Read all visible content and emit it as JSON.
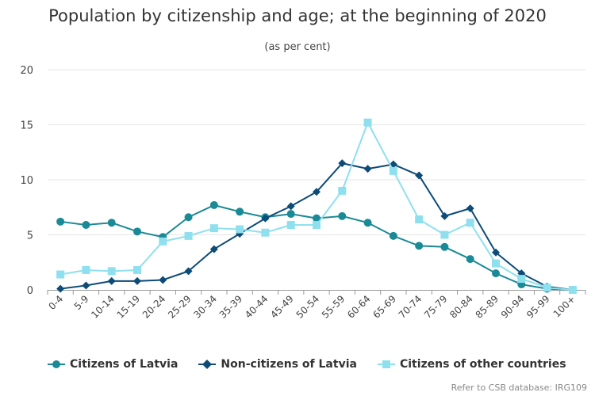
{
  "chart_data": {
    "type": "line",
    "title": "Population by citizenship and age; at the beginning of 2020",
    "subtitle": "(as per cent)",
    "xlabel": "",
    "ylabel": "",
    "ylim": [
      0,
      20
    ],
    "yticks": [
      "0",
      "5",
      "10",
      "15",
      "20"
    ],
    "grid": true,
    "legend_position": "bottom-left",
    "categories": [
      "0-4",
      "5-9",
      "10-14",
      "15-19",
      "20-24",
      "25-29",
      "30-34",
      "35-39",
      "40-44",
      "45-49",
      "50-54",
      "55-59",
      "60-64",
      "65-69",
      "70-74",
      "75-79",
      "80-84",
      "85-89",
      "90-94",
      "95-99",
      "100+"
    ],
    "series": [
      {
        "name": "Citizens of Latvia",
        "color": "#1a8a96",
        "marker": "circle",
        "values": [
          6.2,
          5.9,
          6.1,
          5.3,
          4.8,
          6.6,
          7.7,
          7.1,
          6.6,
          6.9,
          6.5,
          6.7,
          6.1,
          4.9,
          4.0,
          3.9,
          2.8,
          1.5,
          0.5,
          0.1,
          0.0
        ]
      },
      {
        "name": "Non-citizens of Latvia",
        "color": "#0d4b78",
        "marker": "diamond",
        "values": [
          0.1,
          0.4,
          0.8,
          0.8,
          0.9,
          1.7,
          3.7,
          5.1,
          6.5,
          7.6,
          8.9,
          11.5,
          11.0,
          11.4,
          10.4,
          6.7,
          7.4,
          3.4,
          1.5,
          0.3,
          0.0
        ]
      },
      {
        "name": "Citizens of other countries",
        "color": "#8fe0ee",
        "marker": "square",
        "values": [
          1.4,
          1.8,
          1.7,
          1.8,
          4.4,
          4.9,
          5.6,
          5.5,
          5.2,
          5.9,
          5.9,
          9.0,
          15.2,
          10.8,
          6.4,
          5.0,
          6.1,
          2.4,
          1.0,
          0.2,
          0.0
        ]
      }
    ]
  },
  "credit": "Refer to CSB database: IRG109"
}
